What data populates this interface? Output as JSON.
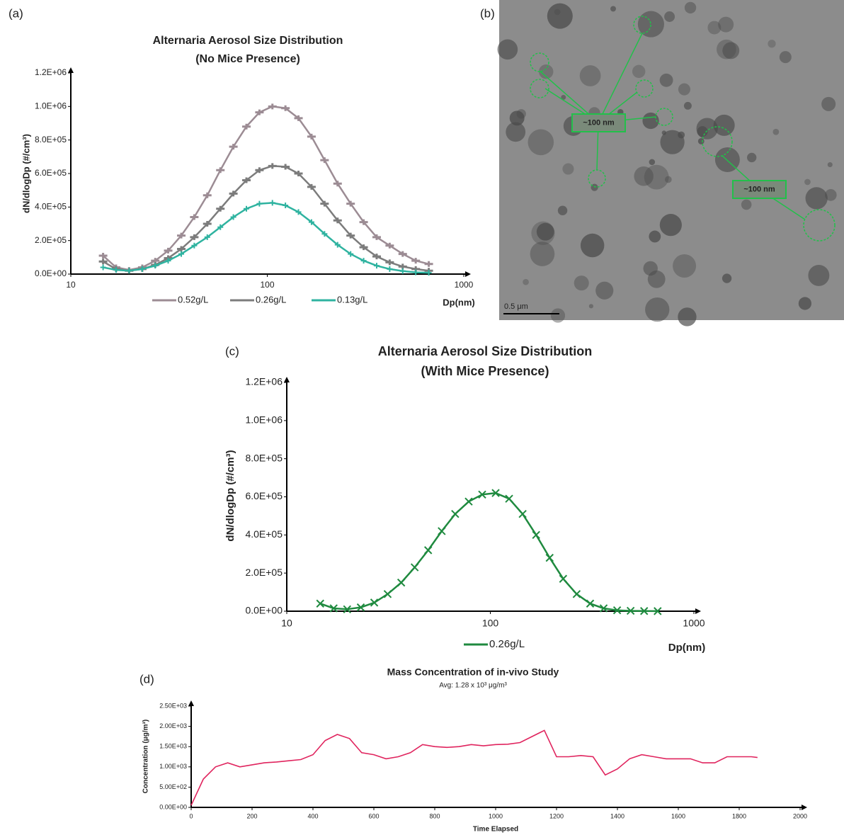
{
  "chart_data": [
    {
      "type": "line",
      "label": "(a)",
      "title": "Alternaria Aerosol Size Distribution",
      "subtitle": "(No Mice Presence)",
      "x_label": "Dp(nm)",
      "y_label": "dN/dlogDp (#/cm³)",
      "xscale": "log",
      "xlim": [
        10,
        1000
      ],
      "xticks": [
        10,
        100,
        1000
      ],
      "ylim": [
        0,
        1200000
      ],
      "yticks": [
        {
          "value": 0,
          "label": "0.0E+00"
        },
        {
          "value": 200000,
          "label": "2.0E+05"
        },
        {
          "value": 400000,
          "label": "4.0E+05"
        },
        {
          "value": 600000,
          "label": "6.0E+05"
        },
        {
          "value": 800000,
          "label": "8.0E+05"
        },
        {
          "value": 1000000,
          "label": "1.0E+06"
        },
        {
          "value": 1200000,
          "label": "1.2E+06"
        }
      ],
      "x": [
        14.6,
        17.0,
        19.8,
        23.1,
        26.9,
        31.3,
        36.5,
        42.5,
        49.5,
        57.7,
        67.2,
        78.3,
        91.2,
        106.2,
        123.7,
        144.1,
        167.9,
        195.6,
        227.9,
        265.5,
        309.3,
        360.3,
        419.7,
        488.9,
        569.6,
        663.6
      ],
      "series": [
        {
          "name": "0.52g/L",
          "color": "#9c8c94",
          "marker": "-",
          "values": [
            110000,
            40000,
            25000,
            40000,
            80000,
            140000,
            230000,
            340000,
            470000,
            620000,
            760000,
            880000,
            965000,
            1000000,
            990000,
            930000,
            820000,
            680000,
            540000,
            420000,
            310000,
            220000,
            170000,
            120000,
            80000,
            60000
          ]
        },
        {
          "name": "0.26g/L",
          "color": "#7c7c7c",
          "marker": "-",
          "values": [
            75000,
            30000,
            20000,
            30000,
            55000,
            95000,
            150000,
            220000,
            300000,
            390000,
            480000,
            560000,
            620000,
            645000,
            640000,
            600000,
            520000,
            420000,
            320000,
            230000,
            160000,
            105000,
            70000,
            45000,
            30000,
            20000
          ]
        },
        {
          "name": "0.13g/L",
          "color": "#2fb3a0",
          "marker": "+",
          "values": [
            40000,
            25000,
            20000,
            30000,
            50000,
            80000,
            120000,
            170000,
            220000,
            280000,
            340000,
            390000,
            420000,
            425000,
            410000,
            370000,
            310000,
            240000,
            175000,
            120000,
            80000,
            50000,
            30000,
            18000,
            10000,
            8000
          ]
        }
      ]
    },
    {
      "type": "image",
      "label": "(b)",
      "scale_bar": "0.5 μm",
      "annotations": [
        "~100 nm",
        "~100 nm"
      ]
    },
    {
      "type": "line",
      "label": "(c)",
      "title": "Alternaria Aerosol Size Distribution",
      "subtitle": "(With Mice Presence)",
      "x_label": "Dp(nm)",
      "y_label": "dN/dlogDp (#/cm³)",
      "xscale": "log",
      "xlim": [
        10,
        1000
      ],
      "xticks": [
        10,
        100,
        1000
      ],
      "ylim": [
        0,
        1200000
      ],
      "yticks": [
        {
          "value": 0,
          "label": "0.0E+00"
        },
        {
          "value": 200000,
          "label": "2.0E+05"
        },
        {
          "value": 400000,
          "label": "4.0E+05"
        },
        {
          "value": 600000,
          "label": "6.0E+05"
        },
        {
          "value": 800000,
          "label": "8.0E+05"
        },
        {
          "value": 1000000,
          "label": "1.0E+06"
        },
        {
          "value": 1200000,
          "label": "1.2E+06"
        }
      ],
      "x": [
        14.6,
        17.0,
        19.8,
        23.1,
        26.9,
        31.3,
        36.5,
        42.5,
        49.5,
        57.7,
        67.2,
        78.3,
        91.2,
        106.2,
        123.7,
        144.1,
        167.9,
        195.6,
        227.9,
        265.5,
        309.3,
        360.3,
        419.7,
        488.9,
        569.6,
        663.6
      ],
      "series": [
        {
          "name": "0.26g/L",
          "color": "#1f8a3f",
          "marker": "x",
          "values": [
            40000,
            15000,
            10000,
            20000,
            45000,
            90000,
            150000,
            230000,
            320000,
            420000,
            510000,
            575000,
            612000,
            620000,
            590000,
            510000,
            400000,
            280000,
            170000,
            90000,
            40000,
            15000,
            5000,
            2000,
            1000,
            500
          ]
        }
      ]
    },
    {
      "type": "line",
      "label": "(d)",
      "title": "Mass Concentration of in-vivo Study",
      "subtitle": "Avg: 1.28 x 10³ μg/m³",
      "x_label": "Time Elapsed",
      "y_label": "Concentration (μg/m³)",
      "xlim": [
        0,
        2000
      ],
      "xticks": [
        0,
        200,
        400,
        600,
        800,
        1000,
        1200,
        1400,
        1600,
        1800,
        2000
      ],
      "ylim": [
        0,
        2500
      ],
      "yticks": [
        {
          "value": 0,
          "label": "0.00E+00"
        },
        {
          "value": 500,
          "label": "5.00E+02"
        },
        {
          "value": 1000,
          "label": "1.00E+03"
        },
        {
          "value": 1500,
          "label": "1.50E+03"
        },
        {
          "value": 2000,
          "label": "2.00E+03"
        },
        {
          "value": 2500,
          "label": "2.50E+03"
        }
      ],
      "color": "#e0245e",
      "x": [
        0,
        40,
        80,
        120,
        160,
        200,
        240,
        280,
        320,
        360,
        400,
        440,
        480,
        520,
        560,
        600,
        640,
        680,
        720,
        760,
        800,
        840,
        880,
        920,
        960,
        1000,
        1040,
        1080,
        1120,
        1160,
        1200,
        1240,
        1280,
        1320,
        1360,
        1400,
        1440,
        1480,
        1520,
        1560,
        1600,
        1640,
        1680,
        1720,
        1760,
        1800,
        1840,
        1860
      ],
      "values": [
        50,
        700,
        1000,
        1100,
        1000,
        1050,
        1100,
        1120,
        1150,
        1180,
        1300,
        1650,
        1800,
        1700,
        1350,
        1300,
        1200,
        1250,
        1350,
        1550,
        1500,
        1480,
        1500,
        1550,
        1520,
        1550,
        1560,
        1600,
        1750,
        1900,
        1250,
        1250,
        1280,
        1250,
        800,
        950,
        1200,
        1300,
        1250,
        1200,
        1200,
        1200,
        1100,
        1100,
        1250,
        1250,
        1250,
        1230
      ]
    }
  ]
}
